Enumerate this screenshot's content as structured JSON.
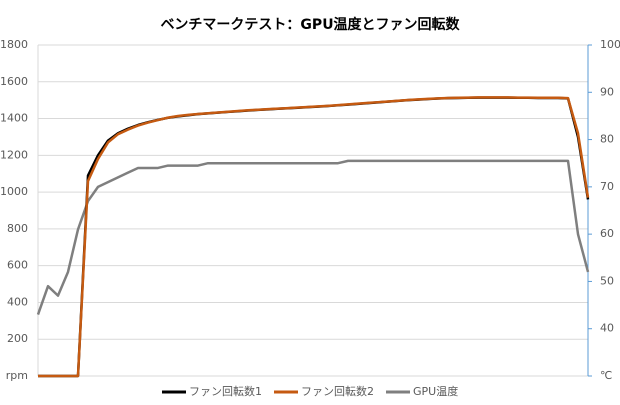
{
  "chart_data": {
    "type": "line",
    "title": "ベンチマークテスト：GPU温度とファン回転数",
    "categories": [
      null,
      null,
      null,
      null,
      null,
      null,
      null,
      null,
      null,
      null,
      null,
      null,
      null,
      null,
      null,
      null,
      null,
      null,
      null,
      null,
      null,
      null,
      null,
      null,
      null,
      null,
      null,
      null,
      null,
      null,
      null,
      null,
      null,
      null,
      null,
      null,
      null,
      null,
      null,
      null,
      null,
      null,
      null,
      null,
      null,
      null,
      null,
      null,
      null,
      null,
      null,
      null,
      null,
      null,
      null,
      null
    ],
    "series": [
      {
        "name": "ファン回転数1",
        "color": "#000000",
        "values": [
          0,
          0,
          0,
          0,
          0,
          1090,
          1200,
          1280,
          1320,
          1345,
          1365,
          1380,
          1393,
          1404,
          1412,
          1418,
          1424,
          1428,
          1432,
          1436,
          1440,
          1444,
          1447,
          1450,
          1453,
          1456,
          1459,
          1462,
          1465,
          1468,
          1472,
          1476,
          1480,
          1484,
          1488,
          1492,
          1496,
          1500,
          1503,
          1506,
          1509,
          1511,
          1512,
          1513,
          1514,
          1514,
          1514,
          1514,
          1513,
          1513,
          1512,
          1512,
          1512,
          1510,
          1300,
          960
        ]
      },
      {
        "name": "ファン回転数2",
        "color": "#c55a11",
        "values": [
          0,
          0,
          0,
          0,
          0,
          1060,
          1180,
          1270,
          1315,
          1340,
          1362,
          1378,
          1392,
          1405,
          1414,
          1420,
          1425,
          1429,
          1433,
          1437,
          1441,
          1445,
          1448,
          1451,
          1454,
          1457,
          1460,
          1463,
          1466,
          1469,
          1473,
          1477,
          1481,
          1485,
          1489,
          1493,
          1497,
          1501,
          1504,
          1507,
          1510,
          1512,
          1513,
          1514,
          1515,
          1515,
          1515,
          1515,
          1514,
          1514,
          1513,
          1513,
          1513,
          1511,
          1320,
          970
        ]
      },
      {
        "name": "GPU温度",
        "color": "#7f7f7f",
        "axis": "y2",
        "values": [
          43,
          49,
          47,
          52,
          61,
          67,
          70,
          71,
          72,
          73,
          74,
          74,
          74,
          74.5,
          74.5,
          74.5,
          74.5,
          75,
          75,
          75,
          75,
          75,
          75,
          75,
          75,
          75,
          75,
          75,
          75,
          75,
          75,
          75.5,
          75.5,
          75.5,
          75.5,
          75.5,
          75.5,
          75.5,
          75.5,
          75.5,
          75.5,
          75.5,
          75.5,
          75.5,
          75.5,
          75.5,
          75.5,
          75.5,
          75.5,
          75.5,
          75.5,
          75.5,
          75.5,
          75.5,
          60,
          52
        ]
      }
    ],
    "ylim": [
      0,
      1800
    ],
    "yticks": [
      {
        "value": 0,
        "label": "rpm"
      },
      200,
      400,
      600,
      800,
      1000,
      1200,
      1400,
      1600,
      1800
    ],
    "y2lim": [
      30,
      100
    ],
    "y2ticks": [
      {
        "value": 30,
        "label": "℃"
      },
      40,
      50,
      60,
      70,
      80,
      90,
      100
    ],
    "grid": true,
    "legend": "bottom"
  }
}
